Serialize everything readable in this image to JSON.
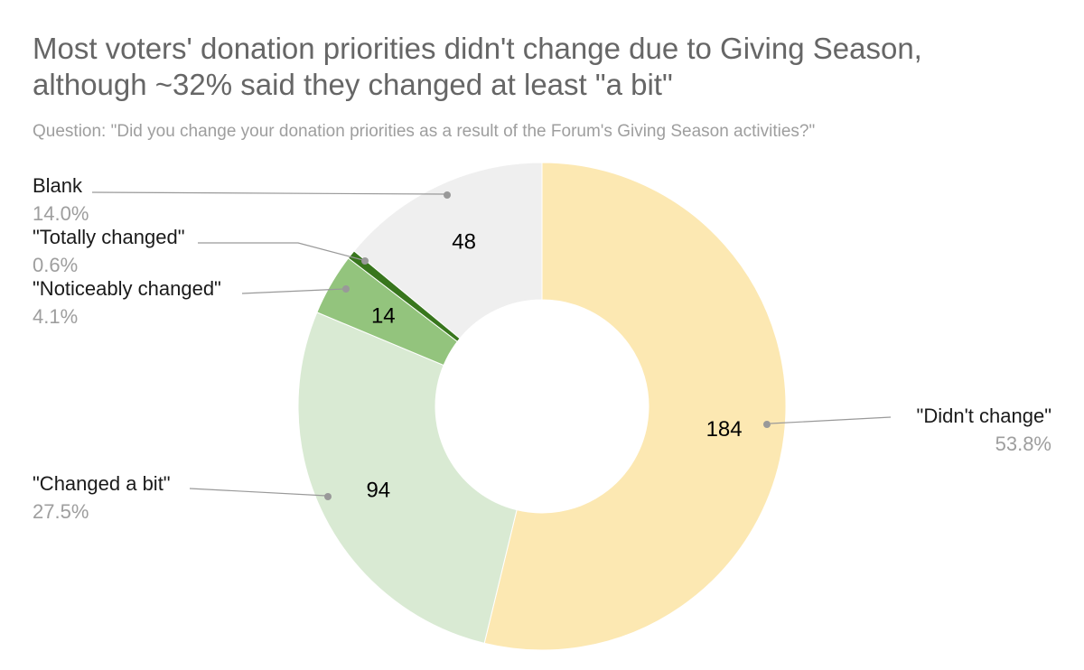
{
  "header": {
    "title": "Most voters' donation priorities didn't change due to Giving Season, although ~32% said they changed at least \"a bit\"",
    "subtitle": "Question: \"Did you change your donation priorities as a result of the Forum's Giving Season activities?\""
  },
  "chart_data": {
    "type": "pie",
    "donut": true,
    "legend_position": "none",
    "labels_style": "callouts-with-leader-lines",
    "title": "Most voters' donation priorities didn't change due to Giving Season, although ~32% said they changed at least \"a bit\"",
    "subtitle": "Question: \"Did you change your donation priorities as a result of the Forum's Giving Season activities?\"",
    "slices": [
      {
        "name": "\"Didn't change\"",
        "pct": 53.8,
        "pct_label": "53.8%",
        "value": "184",
        "color": "#fce8b2"
      },
      {
        "name": "\"Changed a bit\"",
        "pct": 27.5,
        "pct_label": "27.5%",
        "value": "94",
        "color": "#d9ead3"
      },
      {
        "name": "\"Noticeably changed\"",
        "pct": 4.1,
        "pct_label": "4.1%",
        "value": "14",
        "color": "#93c47d"
      },
      {
        "name": "\"Totally changed\"",
        "pct": 0.6,
        "pct_label": "0.6%",
        "value": "",
        "color": "#38761d"
      },
      {
        "name": "Blank",
        "pct": 14.0,
        "pct_label": "14.0%",
        "value": "48",
        "color": "#efefef"
      }
    ]
  }
}
